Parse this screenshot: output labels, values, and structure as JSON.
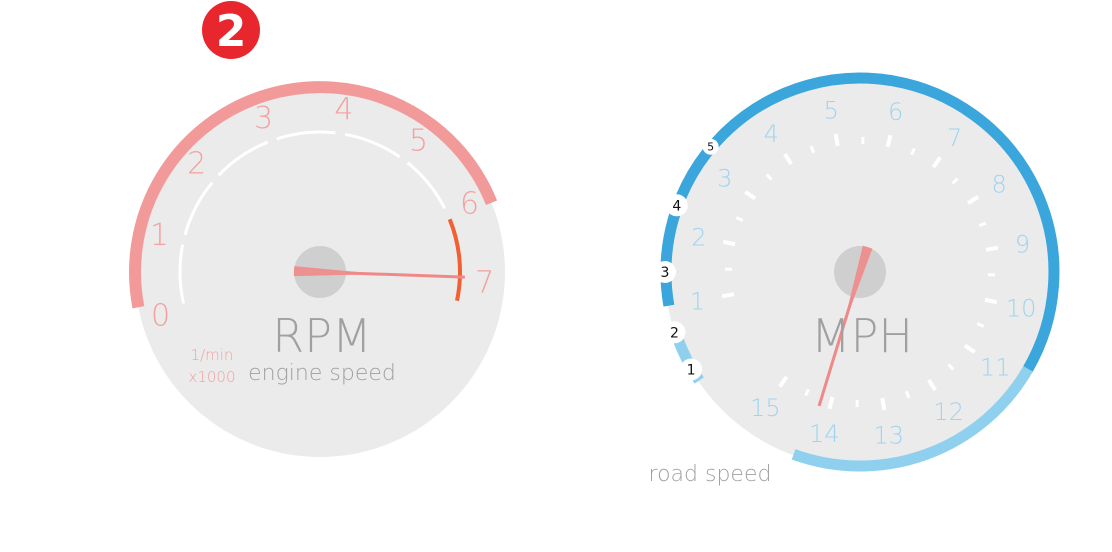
{
  "gear_badge": {
    "value": "2",
    "color": "#e8262d"
  },
  "rpm_gauge": {
    "title": "RPM",
    "subtitle": "engine speed",
    "unit_line1": "1/min",
    "unit_line2": "x1000",
    "ticks": [
      "0",
      "1",
      "2",
      "3",
      "4",
      "5",
      "6",
      "7"
    ],
    "needle_value": 0.6,
    "redline_start": 6.1,
    "colors": {
      "label": "#f4a0a0",
      "band": "#f29a9a",
      "redline": "#f06030",
      "needle": "#f08888",
      "face": "#ebebeb"
    }
  },
  "mph_gauge": {
    "title": "MPH",
    "caption": "road speed",
    "ticks": [
      "1",
      "2",
      "3",
      "4",
      "5",
      "6",
      "7",
      "8",
      "9",
      "10",
      "11",
      "12",
      "13",
      "14",
      "15"
    ],
    "gear_markers": [
      "1",
      "2",
      "3",
      "4",
      "5"
    ],
    "needle_value": 6.2,
    "colors": {
      "label": "#9fd4ef",
      "band_dark": "#3aa6dc",
      "band_light": "#8fd0ee",
      "needle": "#f08888",
      "face": "#ebebeb"
    }
  }
}
